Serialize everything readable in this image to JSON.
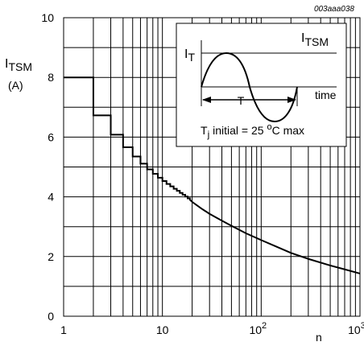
{
  "chart_data": {
    "type": "line",
    "code": "003aaa038",
    "ylabel_main": "I",
    "ylabel_sub": "TSM",
    "ylabel_unit": "(A)",
    "xlabel": "n",
    "x_scale": "log",
    "xlim": [
      1,
      1000
    ],
    "ylim": [
      0,
      10
    ],
    "x_ticks": [
      {
        "label": "1",
        "sup": ""
      },
      {
        "label": "10",
        "sup": ""
      },
      {
        "label": "10",
        "sup": "2"
      },
      {
        "label": "10",
        "sup": "3"
      }
    ],
    "y_ticks": [
      "0",
      "2",
      "4",
      "6",
      "8",
      "10"
    ],
    "grid": true,
    "series": [
      {
        "x": [
          1,
          2,
          2,
          3,
          3,
          4,
          4,
          5,
          5,
          6,
          6,
          7,
          7,
          8,
          8,
          9,
          9,
          10,
          10,
          11,
          11,
          12,
          12,
          13,
          13,
          14,
          14,
          15,
          15,
          16,
          16,
          17,
          17,
          18,
          18,
          19,
          19,
          20,
          25,
          30,
          40,
          50,
          70,
          100,
          150,
          200,
          300,
          500,
          700,
          1000
        ],
        "y": [
          8.0,
          8.0,
          6.73,
          6.73,
          6.08,
          6.08,
          5.66,
          5.66,
          5.35,
          5.35,
          5.11,
          5.11,
          4.92,
          4.92,
          4.77,
          4.77,
          4.64,
          4.64,
          4.53,
          4.53,
          4.43,
          4.43,
          4.35,
          4.35,
          4.27,
          4.27,
          4.2,
          4.2,
          4.13,
          4.13,
          4.07,
          4.07,
          4.01,
          4.01,
          3.95,
          3.95,
          3.9,
          3.83,
          3.6,
          3.43,
          3.2,
          3.03,
          2.78,
          2.55,
          2.3,
          2.12,
          1.92,
          1.7,
          1.57,
          1.43
        ]
      }
    ],
    "inset": {
      "it_main": "I",
      "it_sub": "T",
      "itsm_main": "I",
      "itsm_sub": "TSM",
      "period": "T",
      "time": "time",
      "cond_main": "T",
      "cond_sub": "j",
      "cond_mid": " initial = 25 ",
      "cond_sup": "o",
      "cond_end": "C max"
    }
  }
}
